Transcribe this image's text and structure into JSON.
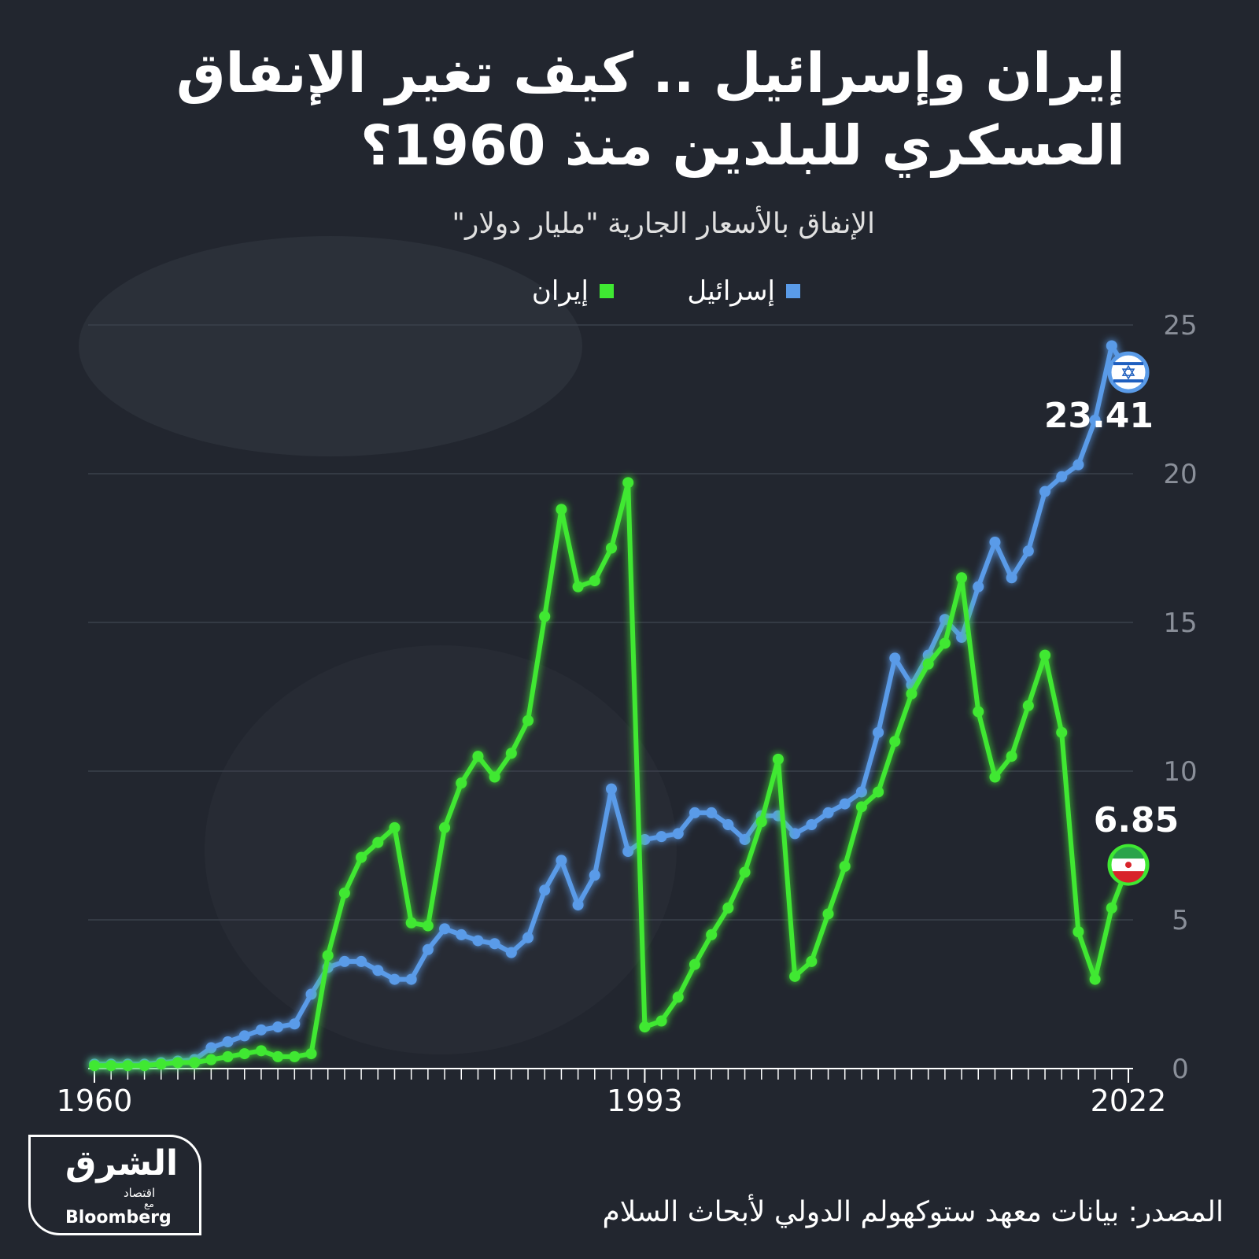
{
  "chart_data": {
    "type": "line",
    "title": [
      "إيران وإسرائيل .. كيف تغير الإنفاق",
      "العسكري  للبلدين منذ 1960؟"
    ],
    "subtitle": "الإنفاق بالأسعار الجارية \"مليار دولار\"",
    "x": [
      1960,
      1961,
      1962,
      1963,
      1964,
      1965,
      1966,
      1967,
      1968,
      1969,
      1970,
      1971,
      1972,
      1973,
      1974,
      1975,
      1976,
      1977,
      1978,
      1979,
      1980,
      1981,
      1982,
      1983,
      1984,
      1985,
      1986,
      1987,
      1988,
      1989,
      1990,
      1991,
      1992,
      1993,
      1994,
      1995,
      1996,
      1997,
      1998,
      1999,
      2000,
      2001,
      2002,
      2003,
      2004,
      2005,
      2006,
      2007,
      2008,
      2009,
      2010,
      2011,
      2012,
      2013,
      2014,
      2015,
      2016,
      2017,
      2018,
      2019,
      2020,
      2021,
      2022
    ],
    "xlim": [
      1960,
      2022
    ],
    "xticks": [
      1960,
      1993,
      2022
    ],
    "ylim": [
      0,
      25
    ],
    "yticks": [
      0,
      5,
      10,
      15,
      20,
      25
    ],
    "grid": true,
    "series": [
      {
        "name": "إسرائيل",
        "color": "#5a9be8",
        "values": [
          0.15,
          0.15,
          0.15,
          0.15,
          0.2,
          0.25,
          0.3,
          0.7,
          0.9,
          1.1,
          1.3,
          1.4,
          1.5,
          2.5,
          3.4,
          3.6,
          3.6,
          3.3,
          3.0,
          3.0,
          4.0,
          4.7,
          4.5,
          4.3,
          4.2,
          3.9,
          4.4,
          6.0,
          7.0,
          5.5,
          6.5,
          9.4,
          7.3,
          7.7,
          7.8,
          7.9,
          8.6,
          8.6,
          8.2,
          7.7,
          8.5,
          8.5,
          7.9,
          8.2,
          8.6,
          8.9,
          9.3,
          11.3,
          13.8,
          12.9,
          13.9,
          15.1,
          14.5,
          16.2,
          17.7,
          16.5,
          17.4,
          19.4,
          19.9,
          20.3,
          21.8,
          24.3,
          23.41
        ]
      },
      {
        "name": "إيران",
        "color": "#3fe832",
        "values": [
          0.1,
          0.1,
          0.1,
          0.1,
          0.15,
          0.2,
          0.2,
          0.3,
          0.4,
          0.5,
          0.6,
          0.4,
          0.4,
          0.5,
          3.8,
          5.9,
          7.1,
          7.6,
          8.1,
          4.9,
          4.8,
          8.1,
          9.6,
          10.5,
          9.8,
          10.6,
          11.7,
          15.2,
          18.8,
          16.2,
          16.4,
          17.5,
          19.7,
          1.4,
          1.6,
          2.4,
          3.5,
          4.5,
          5.4,
          6.6,
          8.3,
          10.4,
          3.1,
          3.6,
          5.2,
          6.8,
          8.8,
          9.3,
          11.0,
          12.6,
          13.6,
          14.3,
          16.5,
          12.0,
          9.8,
          10.5,
          12.2,
          13.9,
          11.3,
          4.6,
          3.0,
          5.4,
          6.85
        ]
      }
    ],
    "source": "المصدر: بيانات معهد ستوكهولم الدولي لأبحاث السلام",
    "logo": {
      "brand": "الشرق",
      "sub": "اقتصاد",
      "with": "مع",
      "partner": "Bloomberg"
    }
  }
}
